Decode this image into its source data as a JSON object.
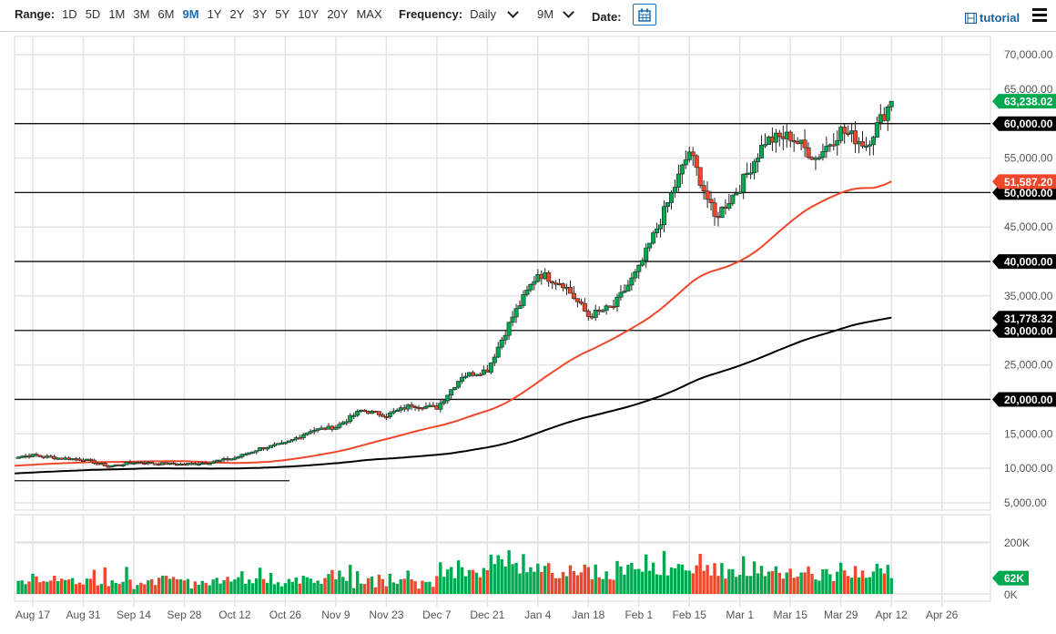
{
  "toolbar": {
    "range_label": "Range:",
    "ranges": [
      "1D",
      "5D",
      "1M",
      "3M",
      "6M",
      "9M",
      "1Y",
      "2Y",
      "3Y",
      "5Y",
      "10Y",
      "20Y",
      "MAX"
    ],
    "active_range": "9M",
    "frequency_label": "Frequency:",
    "frequency_value": "Daily",
    "period_value": "9M",
    "date_label": "Date:",
    "calendar_icon": "calendar-icon",
    "tutorial_label": "tutorial",
    "tutorial_icon": "film-icon",
    "menu_icon": "hamburger-menu-icon"
  },
  "colors": {
    "up": "#00a84f",
    "down": "#f0462a",
    "ma_fast": "#f0462a",
    "ma_slow": "#000000",
    "grid": "#e3e3e3",
    "accent": "#1c6fb5"
  },
  "price_tags": [
    {
      "value": "63,238.02",
      "price": 63238.02,
      "color": "#00a84f"
    },
    {
      "value": "60,000.00",
      "price": 60000,
      "color": "#000000"
    },
    {
      "value": "51,587.20",
      "price": 51587.2,
      "color": "#f0462a"
    },
    {
      "value": "50,000.00",
      "price": 50000,
      "color": "#000000"
    },
    {
      "value": "40,000.00",
      "price": 40000,
      "color": "#000000"
    },
    {
      "value": "31,778.32",
      "price": 31778.32,
      "color": "#000000"
    },
    {
      "value": "30,000.00",
      "price": 30000,
      "color": "#000000"
    },
    {
      "value": "20,000.00",
      "price": 20000,
      "color": "#000000"
    }
  ],
  "volume_tag": {
    "value": "62K",
    "color": "#00a84f"
  },
  "chart_data": {
    "type": "candlestick",
    "title": "",
    "frequency": "Daily",
    "range": "9M",
    "x_ticks": [
      "Aug 17",
      "Aug 31",
      "Sep 14",
      "Sep 28",
      "Oct 12",
      "Oct 26",
      "Nov 9",
      "Nov 23",
      "Dec 7",
      "Dec 21",
      "Jan 4",
      "Jan 18",
      "Feb 1",
      "Feb 15",
      "Mar 1",
      "Mar 15",
      "Mar 29",
      "Apr 12",
      "Apr 26"
    ],
    "y_ticks": [
      "70,000.00",
      "65,000.00",
      "60,000.00",
      "55,000.00",
      "50,000.00",
      "45,000.00",
      "40,000.00",
      "35,000.00",
      "30,000.00",
      "25,000.00",
      "20,000.00",
      "15,000.00",
      "10,000.00",
      "5,000.00"
    ],
    "ylim": [
      5000,
      70000
    ],
    "volume_ticks": [
      "200K",
      "0K"
    ],
    "horizontal_lines": [
      60000,
      50000,
      40000,
      30000,
      20000,
      8200
    ],
    "last_price": 63238.02,
    "ma_fast_last": 51587.2,
    "ma_slow_last": 31778.32,
    "last_volume_k": 62,
    "weekly_close": [
      {
        "week": "Aug 10",
        "close": 11600
      },
      {
        "week": "Aug 17",
        "close": 11900
      },
      {
        "week": "Aug 24",
        "close": 11500
      },
      {
        "week": "Aug 31",
        "close": 11300
      },
      {
        "week": "Sep 7",
        "close": 10300
      },
      {
        "week": "Sep 14",
        "close": 10900
      },
      {
        "week": "Sep 21",
        "close": 10700
      },
      {
        "week": "Sep 28",
        "close": 10600
      },
      {
        "week": "Oct 5",
        "close": 10900
      },
      {
        "week": "Oct 12",
        "close": 11500
      },
      {
        "week": "Oct 19",
        "close": 12900
      },
      {
        "week": "Oct 26",
        "close": 13600
      },
      {
        "week": "Nov 2",
        "close": 15500
      },
      {
        "week": "Nov 9",
        "close": 16000
      },
      {
        "week": "Nov 16",
        "close": 18400
      },
      {
        "week": "Nov 23",
        "close": 17700
      },
      {
        "week": "Nov 30",
        "close": 19200
      },
      {
        "week": "Dec 7",
        "close": 18800
      },
      {
        "week": "Dec 14",
        "close": 23400
      },
      {
        "week": "Dec 21",
        "close": 24300
      },
      {
        "week": "Dec 28",
        "close": 32000
      },
      {
        "week": "Jan 4",
        "close": 38300
      },
      {
        "week": "Jan 11",
        "close": 36800
      },
      {
        "week": "Jan 18",
        "close": 32100
      },
      {
        "week": "Jan 25",
        "close": 33500
      },
      {
        "week": "Feb 1",
        "close": 38900
      },
      {
        "week": "Feb 8",
        "close": 47200
      },
      {
        "week": "Feb 15",
        "close": 56000
      },
      {
        "week": "Feb 22",
        "close": 46300
      },
      {
        "week": "Mar 1",
        "close": 50900
      },
      {
        "week": "Mar 8",
        "close": 57500
      },
      {
        "week": "Mar 15",
        "close": 58200
      },
      {
        "week": "Mar 22",
        "close": 55000
      },
      {
        "week": "Mar 29",
        "close": 59000
      },
      {
        "week": "Apr 5",
        "close": 57000
      },
      {
        "week": "Apr 12",
        "close": 63238
      }
    ]
  }
}
